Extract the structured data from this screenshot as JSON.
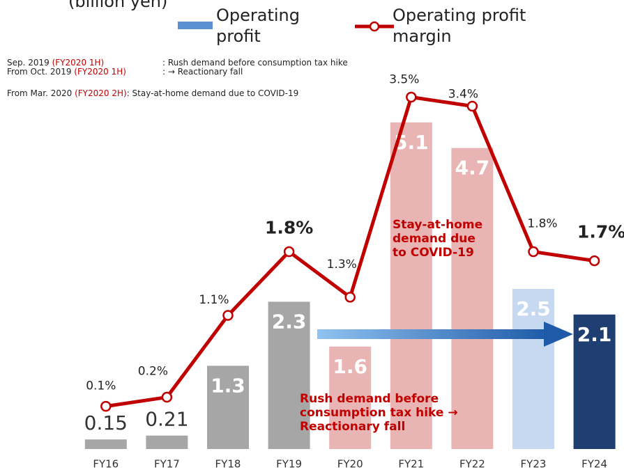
{
  "chart_data": {
    "type": "combo",
    "y_label": "(billion yen)",
    "categories": [
      "FY16",
      "FY17",
      "FY18",
      "FY19",
      "FY20",
      "FY21",
      "FY22",
      "FY23",
      "FY24"
    ],
    "series": [
      {
        "name": "Operating profit",
        "type": "bar",
        "color": "#5b8fd4",
        "colors": [
          "#a6a6a6",
          "#a6a6a6",
          "#a6a6a6",
          "#a6a6a6",
          "#e8b4b4",
          "#e8b4b4",
          "#e8b4b4",
          "#c6d9f1",
          "#1f3f73"
        ],
        "values": [
          0.15,
          0.21,
          1.3,
          2.3,
          1.6,
          5.1,
          4.7,
          2.5,
          2.1
        ]
      },
      {
        "name": "Operating profit margin",
        "type": "line",
        "axis": "y2",
        "color": "#c00000",
        "values": [
          0.1,
          0.2,
          1.1,
          1.8,
          1.3,
          3.5,
          3.4,
          1.8,
          1.7
        ],
        "value_labels": [
          "0.1%",
          "0.2%",
          "1.1%",
          "1.8%",
          "1.3%",
          "3.5%",
          "3.4%",
          "1.8%",
          "1.7%"
        ]
      }
    ],
    "ylim": [
      0,
      7
    ],
    "y2lim": [
      -0.37,
      4.56
    ],
    "annotations": [
      "Stay-at-home demand due to COVID-19",
      "Rush demand before consumption tax hike → Reactionary fall"
    ],
    "notes": [
      {
        "period": "Sep. 2019",
        "fy": "(FY2020 1H)",
        "text": ": Rush demand before consumption tax hike"
      },
      {
        "period": "From Oct. 2019",
        "fy": "(FY2020 1H)",
        "text": ": → Reactionary fall"
      },
      {
        "period": "From Mar. 2020",
        "fy": "(FY2020 2H)",
        "text": ": Stay-at-home demand due to COVID-19"
      }
    ]
  }
}
